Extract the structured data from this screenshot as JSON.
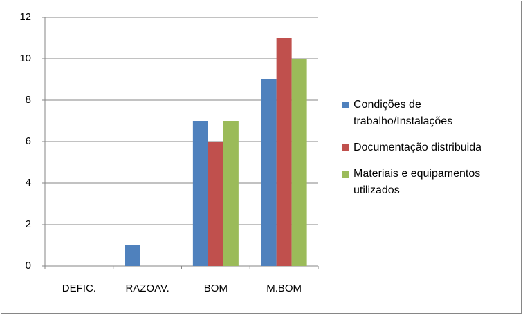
{
  "chart_data": {
    "type": "bar",
    "categories": [
      "DEFIC.",
      "RAZOAV.",
      "BOM",
      "M.BOM"
    ],
    "series": [
      {
        "name": "Condições de trabalho/Instalações",
        "color": "#4f81bd",
        "values": [
          0,
          1,
          7,
          9
        ]
      },
      {
        "name": "Documentação distribuida",
        "color": "#c0504d",
        "values": [
          0,
          0,
          6,
          11
        ]
      },
      {
        "name": "Materiais e equipamentos utilizados",
        "color": "#9bbb59",
        "values": [
          0,
          0,
          7,
          10
        ]
      }
    ],
    "ylim": [
      0,
      12
    ],
    "yticks": [
      0,
      2,
      4,
      6,
      8,
      10,
      12
    ],
    "grid": true,
    "legend": "right"
  }
}
